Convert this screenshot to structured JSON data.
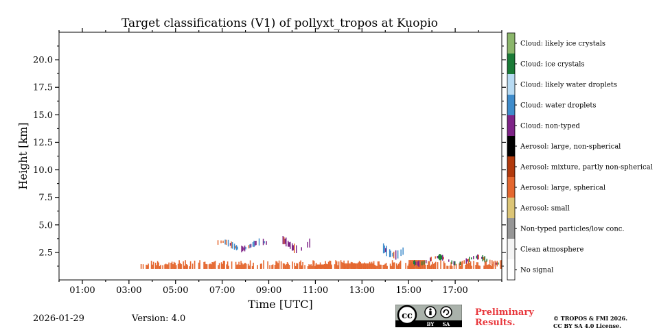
{
  "chart_data": {
    "type": "heatmap",
    "title": "Target classifications (V1) of pollyxt_tropos at Kuopio",
    "xlabel": "Time [UTC]",
    "ylabel": "Height [km]",
    "xlim_hours": [
      0.0,
      19.0
    ],
    "ylim": [
      0.0,
      22.5
    ],
    "x_ticks": [
      "01:00",
      "03:00",
      "05:00",
      "07:00",
      "09:00",
      "11:00",
      "13:00",
      "15:00",
      "17:00"
    ],
    "x_tick_hours": [
      1,
      3,
      5,
      7,
      9,
      11,
      13,
      15,
      17
    ],
    "y_ticks": [
      "2.5",
      "5.0",
      "7.5",
      "10.0",
      "12.5",
      "15.0",
      "17.5",
      "20.0"
    ],
    "y_tick_values": [
      2.5,
      5.0,
      7.5,
      10.0,
      12.5,
      15.0,
      17.5,
      20.0
    ],
    "classes": [
      {
        "label": "No signal",
        "color": "#ffffff"
      },
      {
        "label": "Clean atmosphere",
        "color": "#f4f4f4"
      },
      {
        "label": "Non-typed particles/low conc.",
        "color": "#969696"
      },
      {
        "label": "Aerosol: small",
        "color": "#dcc576"
      },
      {
        "label": "Aerosol: large, spherical",
        "color": "#e4672f"
      },
      {
        "label": "Aerosol: mixture, partly non-spherical",
        "color": "#b13a0d"
      },
      {
        "label": "Aerosol: large, non-spherical",
        "color": "#000000"
      },
      {
        "label": "Cloud: non-typed",
        "color": "#7e2487"
      },
      {
        "label": "Cloud: water droplets",
        "color": "#3f8ccb"
      },
      {
        "label": "Cloud: likely water droplets",
        "color": "#b8dbf3"
      },
      {
        "label": "Cloud: ice crystals",
        "color": "#1b7b37"
      },
      {
        "label": "Cloud: likely ice crystals",
        "color": "#8bb66b"
      }
    ],
    "features": [
      {
        "name": "aerosol-layer",
        "class": "Aerosol: large, spherical",
        "t_start": 3.5,
        "t_end": 19.0,
        "h_bottom": 1.0,
        "h_top": 1.8
      },
      {
        "name": "aerosol-dense-block-1",
        "class": "Aerosol: large, spherical",
        "t_start": 11.0,
        "t_end": 11.7,
        "h_bottom": 1.0,
        "h_top": 1.4
      },
      {
        "name": "aerosol-dense-block-2",
        "class": "Aerosol: large, spherical",
        "t_start": 12.2,
        "t_end": 13.5,
        "h_bottom": 1.0,
        "h_top": 1.5
      },
      {
        "name": "aerosol-dense-block-3",
        "class": "Aerosol: large, spherical",
        "t_start": 15.0,
        "t_end": 15.7,
        "h_bottom": 1.0,
        "h_top": 1.8
      },
      {
        "name": "cloud-band-morning",
        "class": "Cloud: water droplets",
        "t_start": 6.8,
        "t_end": 9.0,
        "h_bottom": 2.3,
        "h_top": 3.6
      },
      {
        "name": "cloud-band-midday",
        "class": "Cloud: non-typed",
        "t_start": 9.5,
        "t_end": 11.0,
        "h_bottom": 2.0,
        "h_top": 3.9
      },
      {
        "name": "cloud-band-afternoon",
        "class": "Cloud: water droplets",
        "t_start": 13.9,
        "t_end": 14.8,
        "h_bottom": 1.5,
        "h_top": 3.4
      },
      {
        "name": "late-plumes",
        "class": "Cloud: ice crystals",
        "t_start": 15.2,
        "t_end": 19.0,
        "h_bottom": 1.0,
        "h_top": 2.2
      }
    ]
  },
  "footer": {
    "date": "2026-01-29",
    "version": "Version: 4.0",
    "preliminary_line1": "Preliminary",
    "preliminary_line2": "Results.",
    "copyright_line1": "© TROPOS & FMI 2026.",
    "copyright_line2": "CC BY SA 4.0 License.",
    "cc_label": "cc",
    "cc_by": "BY",
    "cc_sa": "SA"
  }
}
